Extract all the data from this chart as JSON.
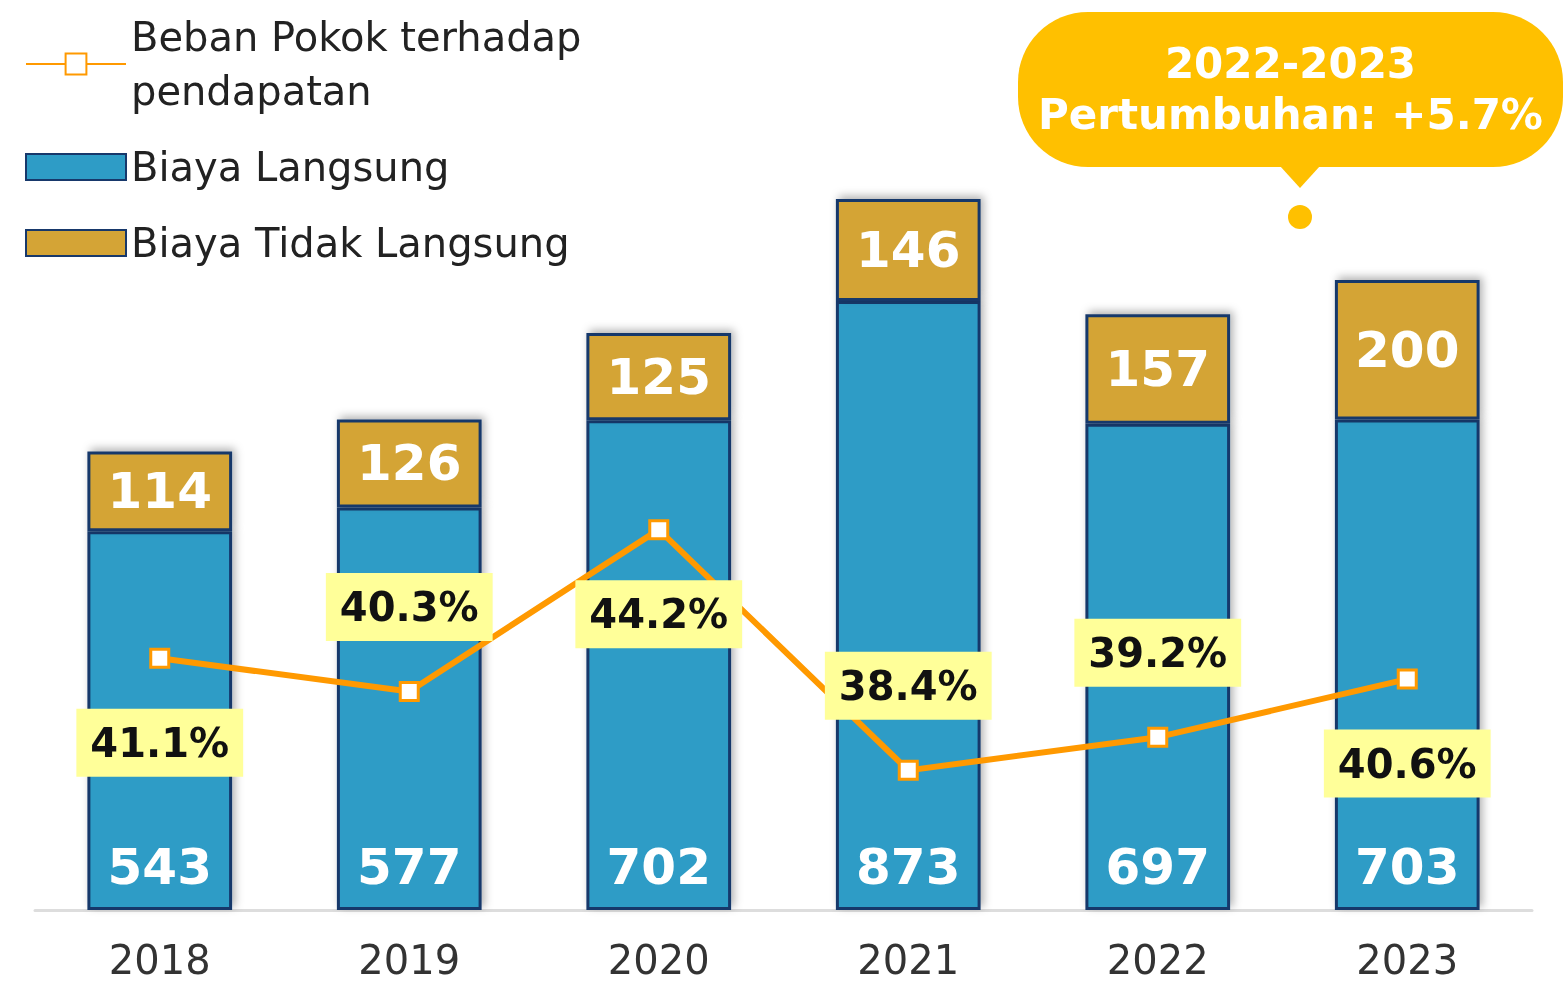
{
  "chart_data": {
    "type": "bar",
    "stacked": true,
    "data_labels": true,
    "legend": "top left",
    "tick_labels": "x",
    "categories": [
      "2018",
      "2019",
      "2020",
      "2021",
      "2022",
      "2023"
    ],
    "series": [
      {
        "name": "Biaya Langsung",
        "color": "#2e9cc6",
        "values": [
          543,
          577,
          702,
          873,
          697,
          703
        ]
      },
      {
        "name": "Biaya Tidak Langsung",
        "color": "#d4a436",
        "values": [
          114,
          126,
          125,
          146,
          157,
          200
        ]
      },
      {
        "name": "Beban Pokok terhadap pendapatan",
        "type": "line",
        "axis": "y2",
        "marker": "square",
        "color": "#ff9900",
        "values": [
          41.1,
          40.3,
          44.2,
          38.4,
          39.2,
          40.6
        ],
        "value_labels": [
          "41.1%",
          "40.3%",
          "44.2%",
          "38.4%",
          "39.2%",
          "40.6%"
        ]
      }
    ],
    "annotations": [
      "2022-2023\nPertumbuhan: +5.7%"
    ]
  }
}
